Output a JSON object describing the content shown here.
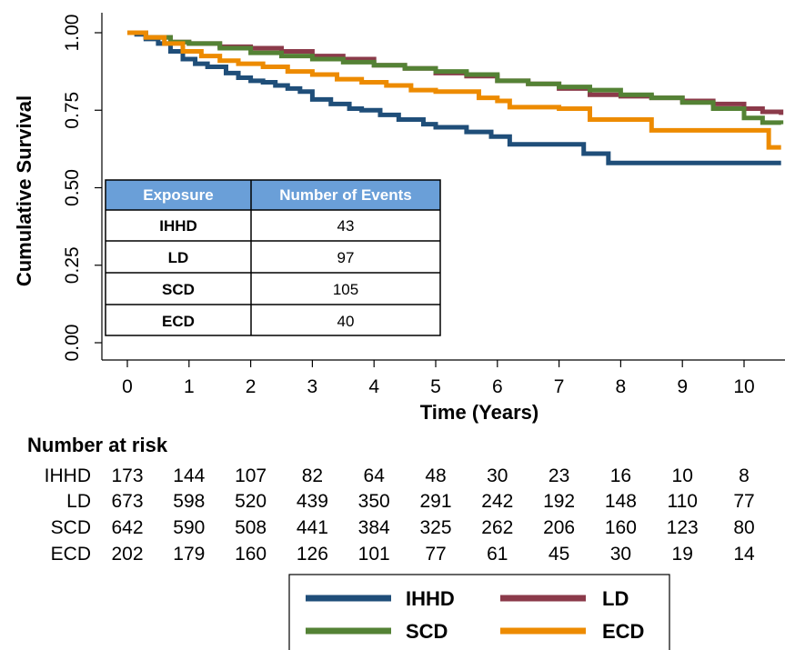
{
  "chart_data": {
    "type": "line",
    "title": "",
    "xlabel": "Time (Years)",
    "ylabel": "Cumulative Survival",
    "xlim": [
      -0.4,
      10.6
    ],
    "ylim": [
      -0.04,
      1.04
    ],
    "x_ticks": [
      0,
      1,
      2,
      3,
      4,
      5,
      6,
      7,
      8,
      9,
      10
    ],
    "y_ticks": [
      0.0,
      0.25,
      0.5,
      0.75,
      1.0
    ],
    "y_tick_labels": [
      "0.00",
      "0.25",
      "0.50",
      "0.75",
      "1.00"
    ],
    "legend_position": "bottom-right",
    "series": [
      {
        "name": "IHHD",
        "color": "#1f4e79",
        "points": [
          [
            0,
            1.0
          ],
          [
            0.15,
            0.995
          ],
          [
            0.3,
            0.98
          ],
          [
            0.5,
            0.965
          ],
          [
            0.7,
            0.94
          ],
          [
            0.9,
            0.915
          ],
          [
            1.1,
            0.9
          ],
          [
            1.3,
            0.89
          ],
          [
            1.6,
            0.87
          ],
          [
            1.8,
            0.855
          ],
          [
            2.0,
            0.845
          ],
          [
            2.2,
            0.84
          ],
          [
            2.4,
            0.83
          ],
          [
            2.6,
            0.82
          ],
          [
            2.8,
            0.81
          ],
          [
            3.0,
            0.785
          ],
          [
            3.3,
            0.77
          ],
          [
            3.6,
            0.755
          ],
          [
            3.8,
            0.75
          ],
          [
            4.1,
            0.735
          ],
          [
            4.4,
            0.72
          ],
          [
            4.8,
            0.705
          ],
          [
            5.0,
            0.695
          ],
          [
            5.5,
            0.68
          ],
          [
            5.9,
            0.665
          ],
          [
            6.2,
            0.64
          ],
          [
            6.9,
            0.64
          ],
          [
            7.4,
            0.61
          ],
          [
            7.8,
            0.58
          ],
          [
            10.6,
            0.58
          ]
        ]
      },
      {
        "name": "LD",
        "color": "#8b3a4a",
        "points": [
          [
            0,
            1.0
          ],
          [
            0.3,
            0.985
          ],
          [
            0.7,
            0.97
          ],
          [
            1.0,
            0.965
          ],
          [
            1.5,
            0.955
          ],
          [
            2.0,
            0.95
          ],
          [
            2.5,
            0.94
          ],
          [
            3.0,
            0.925
          ],
          [
            3.5,
            0.915
          ],
          [
            4.0,
            0.895
          ],
          [
            4.5,
            0.885
          ],
          [
            5.0,
            0.87
          ],
          [
            5.5,
            0.86
          ],
          [
            6.0,
            0.845
          ],
          [
            6.5,
            0.835
          ],
          [
            7.0,
            0.82
          ],
          [
            7.5,
            0.8
          ],
          [
            8.0,
            0.795
          ],
          [
            8.5,
            0.79
          ],
          [
            9.0,
            0.78
          ],
          [
            9.5,
            0.77
          ],
          [
            10.0,
            0.755
          ],
          [
            10.3,
            0.745
          ],
          [
            10.6,
            0.735
          ]
        ]
      },
      {
        "name": "SCD",
        "color": "#548235",
        "points": [
          [
            0,
            1.0
          ],
          [
            0.3,
            0.985
          ],
          [
            0.7,
            0.97
          ],
          [
            1.0,
            0.965
          ],
          [
            1.5,
            0.95
          ],
          [
            2.0,
            0.935
          ],
          [
            2.5,
            0.925
          ],
          [
            3.0,
            0.915
          ],
          [
            3.5,
            0.905
          ],
          [
            4.0,
            0.895
          ],
          [
            4.5,
            0.885
          ],
          [
            5.0,
            0.875
          ],
          [
            5.5,
            0.865
          ],
          [
            6.0,
            0.845
          ],
          [
            6.5,
            0.835
          ],
          [
            7.0,
            0.825
          ],
          [
            7.5,
            0.815
          ],
          [
            8.0,
            0.8
          ],
          [
            8.5,
            0.79
          ],
          [
            9.0,
            0.775
          ],
          [
            9.5,
            0.755
          ],
          [
            10.0,
            0.725
          ],
          [
            10.3,
            0.71
          ],
          [
            10.6,
            0.705
          ]
        ]
      },
      {
        "name": "ECD",
        "color": "#ed8b00",
        "points": [
          [
            0,
            1.0
          ],
          [
            0.3,
            0.985
          ],
          [
            0.6,
            0.965
          ],
          [
            0.9,
            0.94
          ],
          [
            1.2,
            0.925
          ],
          [
            1.5,
            0.91
          ],
          [
            1.8,
            0.9
          ],
          [
            2.2,
            0.89
          ],
          [
            2.6,
            0.875
          ],
          [
            3.0,
            0.865
          ],
          [
            3.4,
            0.85
          ],
          [
            3.8,
            0.84
          ],
          [
            4.2,
            0.83
          ],
          [
            4.6,
            0.815
          ],
          [
            5.0,
            0.81
          ],
          [
            5.5,
            0.81
          ],
          [
            5.7,
            0.79
          ],
          [
            6.0,
            0.78
          ],
          [
            6.2,
            0.76
          ],
          [
            7.0,
            0.755
          ],
          [
            7.5,
            0.72
          ],
          [
            8.0,
            0.72
          ],
          [
            8.5,
            0.685
          ],
          [
            10.3,
            0.685
          ],
          [
            10.4,
            0.63
          ],
          [
            10.6,
            0.63
          ]
        ]
      }
    ]
  },
  "events_table": {
    "headers": [
      "Exposure",
      "Number of Events"
    ],
    "rows": [
      {
        "exposure": "IHHD",
        "events": "43"
      },
      {
        "exposure": "LD",
        "events": "97"
      },
      {
        "exposure": "SCD",
        "events": "105"
      },
      {
        "exposure": "ECD",
        "events": "40"
      }
    ],
    "header_color": "#6a9fd8"
  },
  "risk_table": {
    "title": "Number at risk",
    "rows": [
      {
        "label": "IHHD",
        "values": [
          "173",
          "144",
          "107",
          "82",
          "64",
          "48",
          "30",
          "23",
          "16",
          "10",
          "8"
        ]
      },
      {
        "label": "LD",
        "values": [
          "673",
          "598",
          "520",
          "439",
          "350",
          "291",
          "242",
          "192",
          "148",
          "110",
          "77"
        ]
      },
      {
        "label": "SCD",
        "values": [
          "642",
          "590",
          "508",
          "441",
          "384",
          "325",
          "262",
          "206",
          "160",
          "123",
          "80"
        ]
      },
      {
        "label": "ECD",
        "values": [
          "202",
          "179",
          "160",
          "126",
          "101",
          "77",
          "61",
          "45",
          "30",
          "19",
          "14"
        ]
      }
    ]
  },
  "legend": {
    "items": [
      {
        "label": "IHHD",
        "color": "#1f4e79"
      },
      {
        "label": "LD",
        "color": "#8b3a4a"
      },
      {
        "label": "SCD",
        "color": "#548235"
      },
      {
        "label": "ECD",
        "color": "#ed8b00"
      }
    ]
  }
}
